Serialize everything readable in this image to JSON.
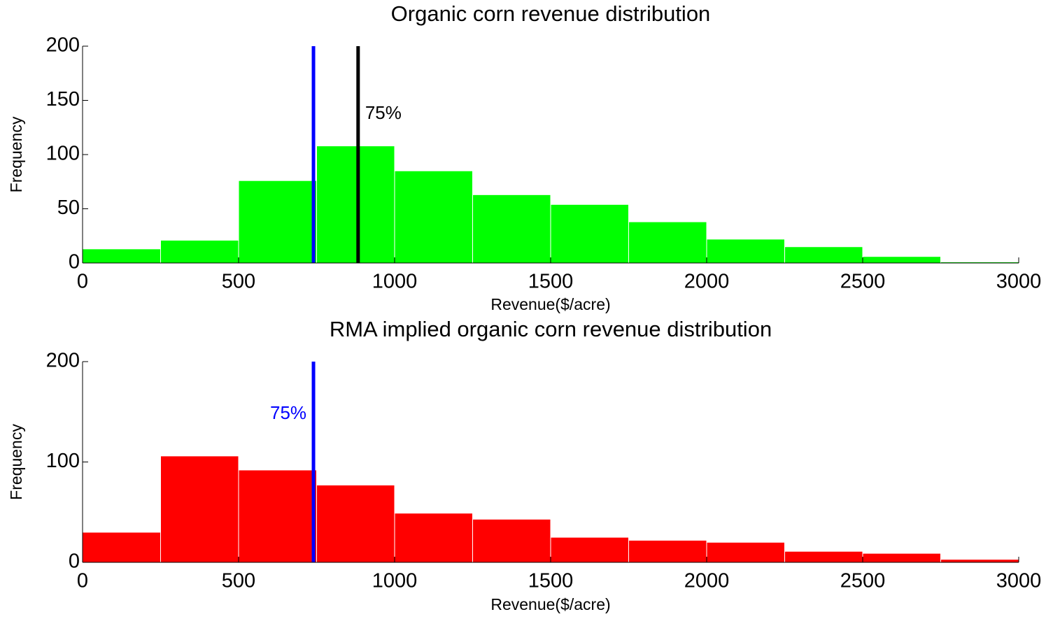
{
  "chart_data": [
    {
      "type": "histogram",
      "title": "Organic corn revenue distribution",
      "xlabel": "Revenue($/acre)",
      "ylabel": "Frequency",
      "bins": [
        0,
        250,
        500,
        750,
        1000,
        1250,
        1500,
        1750,
        2000,
        2250,
        2500,
        2750,
        3000
      ],
      "values": [
        13,
        21,
        76,
        108,
        85,
        63,
        54,
        38,
        22,
        15,
        6,
        1
      ],
      "color": "#00ff00",
      "xlim": [
        0,
        3000
      ],
      "ylim": [
        0,
        200
      ],
      "xticks": [
        0,
        500,
        1000,
        1500,
        2000,
        2500,
        3000
      ],
      "yticks": [
        0,
        50,
        100,
        150,
        200
      ],
      "vlines": [
        {
          "x": 740,
          "color": "#0000ff"
        },
        {
          "x": 883,
          "color": "#000000",
          "label": "75%"
        }
      ]
    },
    {
      "type": "histogram",
      "title": "RMA implied organic corn revenue distribution",
      "xlabel": "Revenue($/acre)",
      "ylabel": "Frequency",
      "bins": [
        0,
        250,
        500,
        750,
        1000,
        1250,
        1500,
        1750,
        2000,
        2250,
        2500,
        2750,
        3000
      ],
      "values": [
        30,
        106,
        92,
        77,
        49,
        43,
        25,
        22,
        20,
        11,
        9,
        3
      ],
      "color": "#ff0000",
      "xlim": [
        0,
        3000
      ],
      "ylim": [
        0,
        200
      ],
      "xticks": [
        0,
        500,
        1000,
        1500,
        2000,
        2500,
        3000
      ],
      "yticks": [
        0,
        100,
        200
      ],
      "vlines": [
        {
          "x": 740,
          "color": "#0000ff",
          "label": "75%"
        }
      ]
    }
  ]
}
